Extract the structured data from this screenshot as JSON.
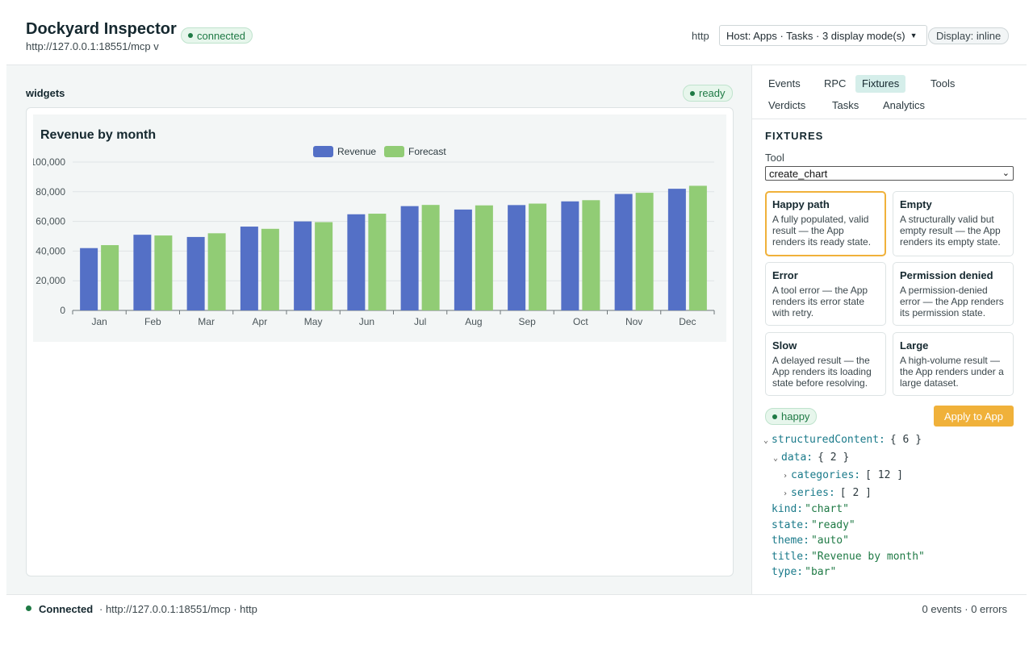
{
  "header": {
    "title": "Dockyard Inspector",
    "server_url": "http://127.0.0.1:18551/mcp v",
    "connection_badge": "connected",
    "transport": "http",
    "host_select": "Host: Apps · Tasks · 3 display mode(s)",
    "display_mode": "Display: inline"
  },
  "main": {
    "label": "widgets",
    "status_badge": "ready"
  },
  "colors": {
    "revenue": "#5470c6",
    "forecast": "#91cc75",
    "accent": "#f0b13a",
    "success": "#1f7a45"
  },
  "chart_data": {
    "type": "bar",
    "title": "Revenue by month",
    "categories": [
      "Jan",
      "Feb",
      "Mar",
      "Apr",
      "May",
      "Jun",
      "Jul",
      "Aug",
      "Sep",
      "Oct",
      "Nov",
      "Dec"
    ],
    "series": [
      {
        "name": "Revenue",
        "values": [
          42000,
          51000,
          49500,
          56500,
          60000,
          64800,
          70300,
          68000,
          71000,
          73500,
          78500,
          82000
        ]
      },
      {
        "name": "Forecast",
        "values": [
          44000,
          50500,
          52000,
          55000,
          59500,
          65200,
          71100,
          70800,
          72000,
          74300,
          79300,
          84000
        ]
      }
    ],
    "y_ticks": [
      "0",
      "20,000",
      "40,000",
      "60,000",
      "80,000",
      "100,000"
    ],
    "ylim": [
      0,
      100000
    ],
    "legend_position": "top-center",
    "grid": true,
    "xlabel": "",
    "ylabel": ""
  },
  "side": {
    "tabs": [
      {
        "label": "Events",
        "active": false
      },
      {
        "label": "RPC",
        "active": false
      },
      {
        "label": "Fixtures",
        "active": true
      },
      {
        "label": "Tools",
        "active": false
      },
      {
        "label": "Verdicts",
        "active": false
      },
      {
        "label": "Tasks",
        "active": false
      },
      {
        "label": "Analytics",
        "active": false
      }
    ],
    "heading": "FIXTURES",
    "tool_label": "Tool",
    "tool_value": "create_chart",
    "fixtures": [
      {
        "title": "Happy path",
        "desc": "A fully populated, valid result — the App renders its ready state.",
        "selected": true
      },
      {
        "title": "Empty",
        "desc": "A structurally valid but empty result — the App renders its empty state.",
        "selected": false
      },
      {
        "title": "Error",
        "desc": "A tool error — the App renders its error state with retry.",
        "selected": false
      },
      {
        "title": "Permission denied",
        "desc": "A permission-denied error — the App renders its permission state.",
        "selected": false
      },
      {
        "title": "Slow",
        "desc": "A delayed result — the App renders its loading state before resolving.",
        "selected": false
      },
      {
        "title": "Large",
        "desc": "A high-volume result — the App renders under a large dataset.",
        "selected": false
      }
    ],
    "fixture_badge": "happy",
    "apply_label": "Apply to App",
    "json_tree": [
      {
        "caret": "expanded",
        "key": "structuredContent:",
        "value": "{ 6 }",
        "kind": "obj"
      },
      {
        "caret": "expanded",
        "key": "data:",
        "value": "{ 2 }",
        "kind": "obj"
      },
      {
        "caret": "collapsed",
        "key": "categories:",
        "value": "[ 12 ]",
        "kind": "obj"
      },
      {
        "caret": "collapsed",
        "key": "series:",
        "value": "[ 2 ]",
        "kind": "obj"
      },
      {
        "caret": "",
        "key": "kind:",
        "value": "\"chart\"",
        "kind": "str"
      },
      {
        "caret": "",
        "key": "state:",
        "value": "\"ready\"",
        "kind": "str"
      },
      {
        "caret": "",
        "key": "theme:",
        "value": "\"auto\"",
        "kind": "str"
      },
      {
        "caret": "",
        "key": "title:",
        "value": "\"Revenue by month\"",
        "kind": "str"
      },
      {
        "caret": "",
        "key": "type:",
        "value": "\"bar\"",
        "kind": "str"
      }
    ]
  },
  "footer": {
    "status": "Connected",
    "info": "·  http://127.0.0.1:18551/mcp  ·  http",
    "counts": "0 events · 0 errors"
  }
}
